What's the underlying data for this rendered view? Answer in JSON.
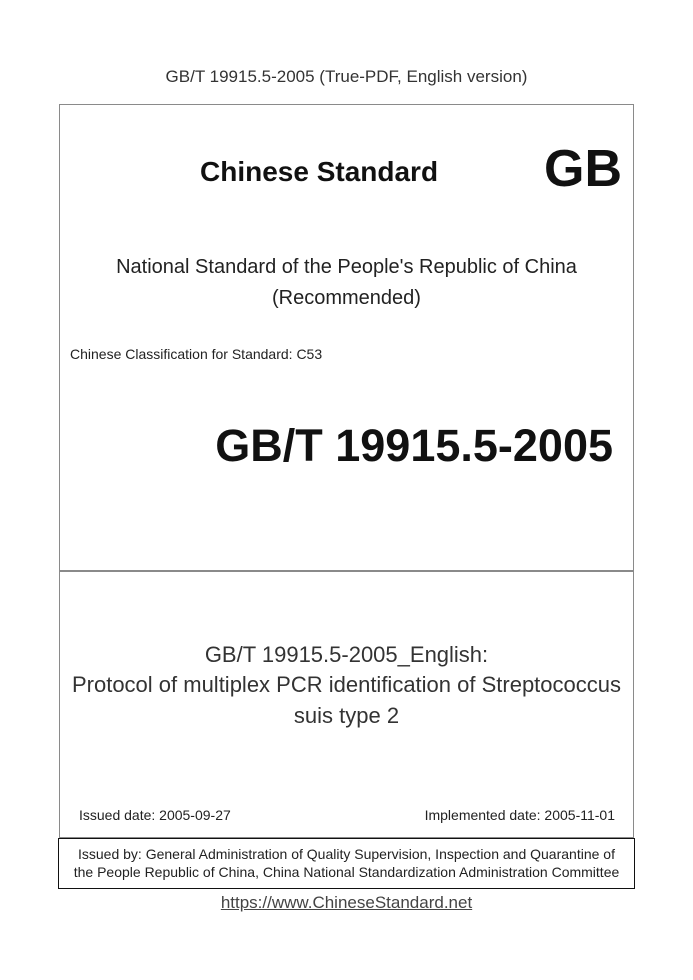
{
  "header": "GB/T 19915.5-2005 (True-PDF, English version)",
  "brand": "Chinese Standard",
  "logo": "GB",
  "national_line1": "National Standard of the People's Republic of China",
  "national_line2": "(Recommended)",
  "classification": "Chinese Classification for Standard: C53",
  "standard_number": "GB/T 19915.5-2005",
  "title_line1": "GB/T 19915.5-2005_English:",
  "title_line2": "Protocol of multiplex PCR identification of Streptococcus",
  "title_line3": "suis type 2",
  "issued_date": "Issued date: 2005-09-27",
  "implemented_date": "Implemented date: 2005-11-01",
  "issued_by_line1": "Issued by: General Administration of Quality Supervision, Inspection and Quarantine of",
  "issued_by_line2": "the People Republic of China, China National Standardization Administration Committee",
  "url": "https://www.ChineseStandard.net"
}
